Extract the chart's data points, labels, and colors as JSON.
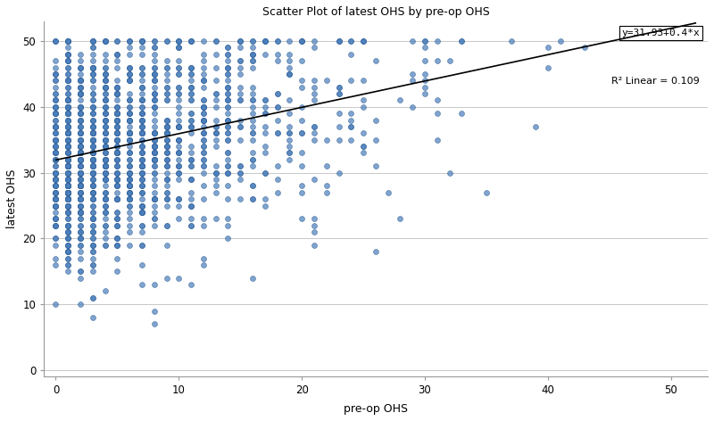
{
  "title": "Scatter Plot of latest OHS by pre-op OHS",
  "xlabel": "pre-op OHS",
  "ylabel": "latest OHS",
  "xlim": [
    -1,
    53
  ],
  "ylim": [
    -1,
    53
  ],
  "xticks": [
    0,
    10,
    20,
    30,
    40,
    50
  ],
  "yticks": [
    0,
    10,
    20,
    30,
    40,
    50
  ],
  "regression_intercept": 31.93,
  "regression_slope": 0.4,
  "r2_label": "R² Linear = 0.109",
  "eq_label": "y=31.93+0.4*x",
  "dot_color": "#4A7EBB",
  "dot_edge_color": "#2E5F96",
  "line_color": "#000000",
  "background_color": "#ffffff",
  "grid_color": "#c8c8c8",
  "seed": 42,
  "n_points": 1600,
  "noise_std": 8.5
}
